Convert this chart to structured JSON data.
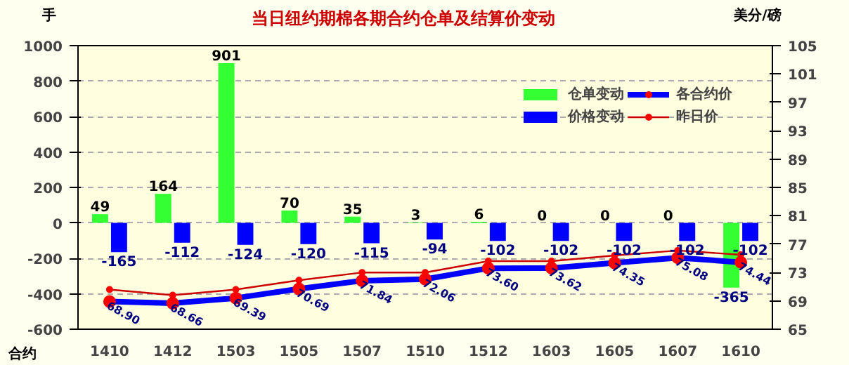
{
  "chart_data": {
    "type": "bar",
    "title": "当日纽约期棉各期合约仓单及结算价变动",
    "xlabel": "合约",
    "ylabel": "手",
    "y2label": "美分/磅",
    "categories": [
      "1410",
      "1412",
      "1503",
      "1505",
      "1507",
      "1510",
      "1512",
      "1603",
      "1605",
      "1607",
      "1610"
    ],
    "series": [
      {
        "name": "仓单变动",
        "color": "#33ff33",
        "values": [
          49,
          164,
          901,
          70,
          35,
          3,
          6,
          0,
          0,
          0,
          -365
        ],
        "value_labels": [
          "49",
          "164",
          "901",
          "70",
          "35",
          "3",
          "6",
          "0",
          "0",
          "0",
          "-365"
        ]
      },
      {
        "name": "价格变动",
        "color": "#0000ff",
        "values": [
          -165,
          -112,
          -124,
          -120,
          -115,
          -94,
          -102,
          -102,
          -102,
          -102,
          -102
        ],
        "value_labels": [
          "-165",
          "-112",
          "-124",
          "-120",
          "-115",
          "-94",
          "-102",
          "-102",
          "-102",
          "-102",
          "-102"
        ]
      },
      {
        "name": "各合约价",
        "type": "line",
        "axis": "y2",
        "color": "#0000ff",
        "marker": "circle",
        "values": [
          68.9,
          68.66,
          69.39,
          70.69,
          71.84,
          72.06,
          73.6,
          73.62,
          74.35,
          75.08,
          74.44
        ],
        "value_labels": [
          "68.90",
          "68.66",
          "69.39",
          "70.69",
          "71.84",
          "72.06",
          "73.60",
          "73.62",
          "74.35",
          "75.08",
          "74.44"
        ]
      },
      {
        "name": "昨日价",
        "type": "line",
        "axis": "y2",
        "color": "#cc0000",
        "marker": "circle",
        "values": [
          70.6,
          69.8,
          70.6,
          71.9,
          73.0,
          73.0,
          74.6,
          74.6,
          75.4,
          76.1,
          75.5
        ]
      }
    ],
    "ylim": [
      -600,
      1000
    ],
    "yticks": [
      -600,
      -400,
      -200,
      0,
      200,
      400,
      600,
      800,
      1000
    ],
    "y2lim": [
      65,
      105
    ],
    "y2ticks": [
      65,
      69,
      73,
      77,
      81,
      85,
      89,
      93,
      97,
      101,
      105
    ],
    "grid": "y",
    "legend": "top right"
  }
}
